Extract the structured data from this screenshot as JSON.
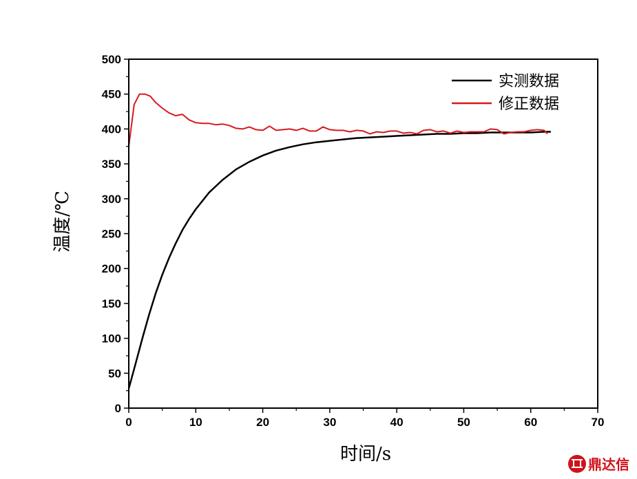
{
  "chart_data": {
    "type": "line",
    "xlabel": "时间/s",
    "ylabel": "温度/℃",
    "xlim": [
      0,
      70
    ],
    "ylim": [
      0,
      500
    ],
    "x_ticks": [
      0,
      10,
      20,
      30,
      40,
      50,
      60,
      70
    ],
    "y_ticks": [
      0,
      50,
      100,
      150,
      200,
      250,
      300,
      350,
      400,
      450,
      500
    ],
    "grid": false,
    "legend_position": "top-right",
    "series": [
      {
        "name": "实测数据",
        "color": "#000000",
        "x": [
          0,
          1,
          2,
          3,
          4,
          5,
          6,
          7,
          8,
          9,
          10,
          12,
          14,
          16,
          18,
          20,
          22,
          24,
          26,
          28,
          30,
          32,
          34,
          36,
          38,
          40,
          42,
          44,
          46,
          48,
          50,
          52,
          54,
          56,
          58,
          60,
          62,
          63
        ],
        "y": [
          28,
          63,
          99,
          133,
          164,
          191,
          215,
          236,
          255,
          271,
          285,
          309,
          327,
          342,
          353,
          362,
          369,
          374,
          378,
          381,
          383,
          385,
          387,
          388,
          389,
          390,
          391,
          392,
          393,
          393,
          394,
          394,
          395,
          395,
          395,
          395,
          396,
          396
        ]
      },
      {
        "name": "修正数据",
        "color": "#d7191c",
        "x": [
          0,
          0.8,
          1.6,
          2.4,
          3.2,
          4,
          5,
          6,
          7,
          8,
          9,
          10,
          11,
          12,
          13,
          14,
          15,
          16,
          17,
          18,
          19,
          20,
          21,
          22,
          23,
          24,
          25,
          26,
          27,
          28,
          29,
          30,
          31,
          32,
          33,
          34,
          35,
          36,
          37,
          38,
          39,
          40,
          41,
          42,
          43,
          44,
          45,
          46,
          47,
          48,
          49,
          50,
          51,
          52,
          53,
          54,
          55,
          56,
          57,
          58,
          59,
          60,
          61,
          62,
          62.5
        ],
        "y": [
          375,
          435,
          450,
          450,
          447,
          438,
          430,
          423,
          419,
          421,
          413,
          409,
          408,
          408,
          406,
          407,
          405,
          401,
          400,
          403,
          399,
          398,
          404,
          398,
          399,
          400,
          398,
          401,
          397,
          397,
          403,
          399,
          398,
          398,
          396,
          398,
          397,
          393,
          396,
          395,
          397,
          397,
          394,
          395,
          393,
          398,
          399,
          396,
          397,
          394,
          397,
          395,
          396,
          396,
          396,
          400,
          399,
          393,
          395,
          396,
          396,
          398,
          399,
          398,
          393
        ]
      }
    ]
  },
  "watermark": {
    "icon": "dingdaxin-logo-icon",
    "text": "鼎达信",
    "color": "#d0121b"
  }
}
